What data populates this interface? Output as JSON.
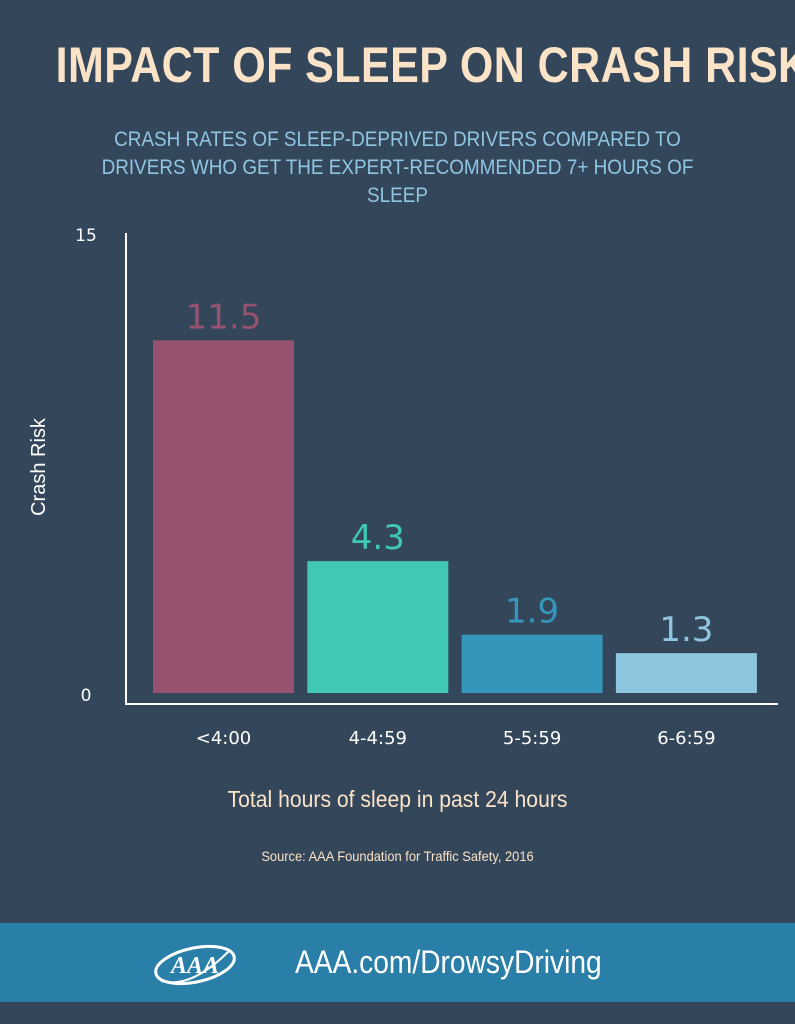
{
  "header": {
    "title": "IMPACT OF SLEEP ON CRASH RISK",
    "subtitle": "CRASH RATES OF SLEEP-DEPRIVED DRIVERS COMPARED TO DRIVERS WHO GET THE EXPERT-RECOMMENDED 7+ HOURS OF SLEEP"
  },
  "chart_data": {
    "type": "bar",
    "title": "IMPACT OF SLEEP ON CRASH RISK",
    "subtitle": "CRASH RATES OF SLEEP-DEPRIVED DRIVERS COMPARED TO DRIVERS WHO GET THE EXPERT-RECOMMENDED 7+ HOURS OF SLEEP",
    "categories": [
      "<4:00",
      "4-4:59",
      "5-5:59",
      "6-6:59"
    ],
    "values": [
      11.5,
      4.3,
      1.9,
      1.3
    ],
    "value_labels": [
      "11.5",
      "4.3",
      "1.9",
      "1.3"
    ],
    "bar_colors": [
      "#97526f",
      "#40c8b2",
      "#3596bb",
      "#8ec6df"
    ],
    "ylabel": "Crash Risk",
    "xlabel": "Total hours of sleep in past 24 hours",
    "ylim": [
      0,
      15
    ],
    "yticks": [
      0,
      15
    ],
    "ytick_labels": [
      "0",
      "15"
    ],
    "grid": false,
    "legend": "none"
  },
  "source": "Source: AAA Foundation for Traffic Safety, 2016",
  "footer": {
    "logo_text": "AAA",
    "link_text": "AAA.com/DrowsyDriving"
  },
  "colors": {
    "background": "#34465a",
    "title": "#fbe3c7",
    "subtitle": "#8fc6e2",
    "footer_bar": "#2a7fa8",
    "axis": "#ffffff"
  }
}
